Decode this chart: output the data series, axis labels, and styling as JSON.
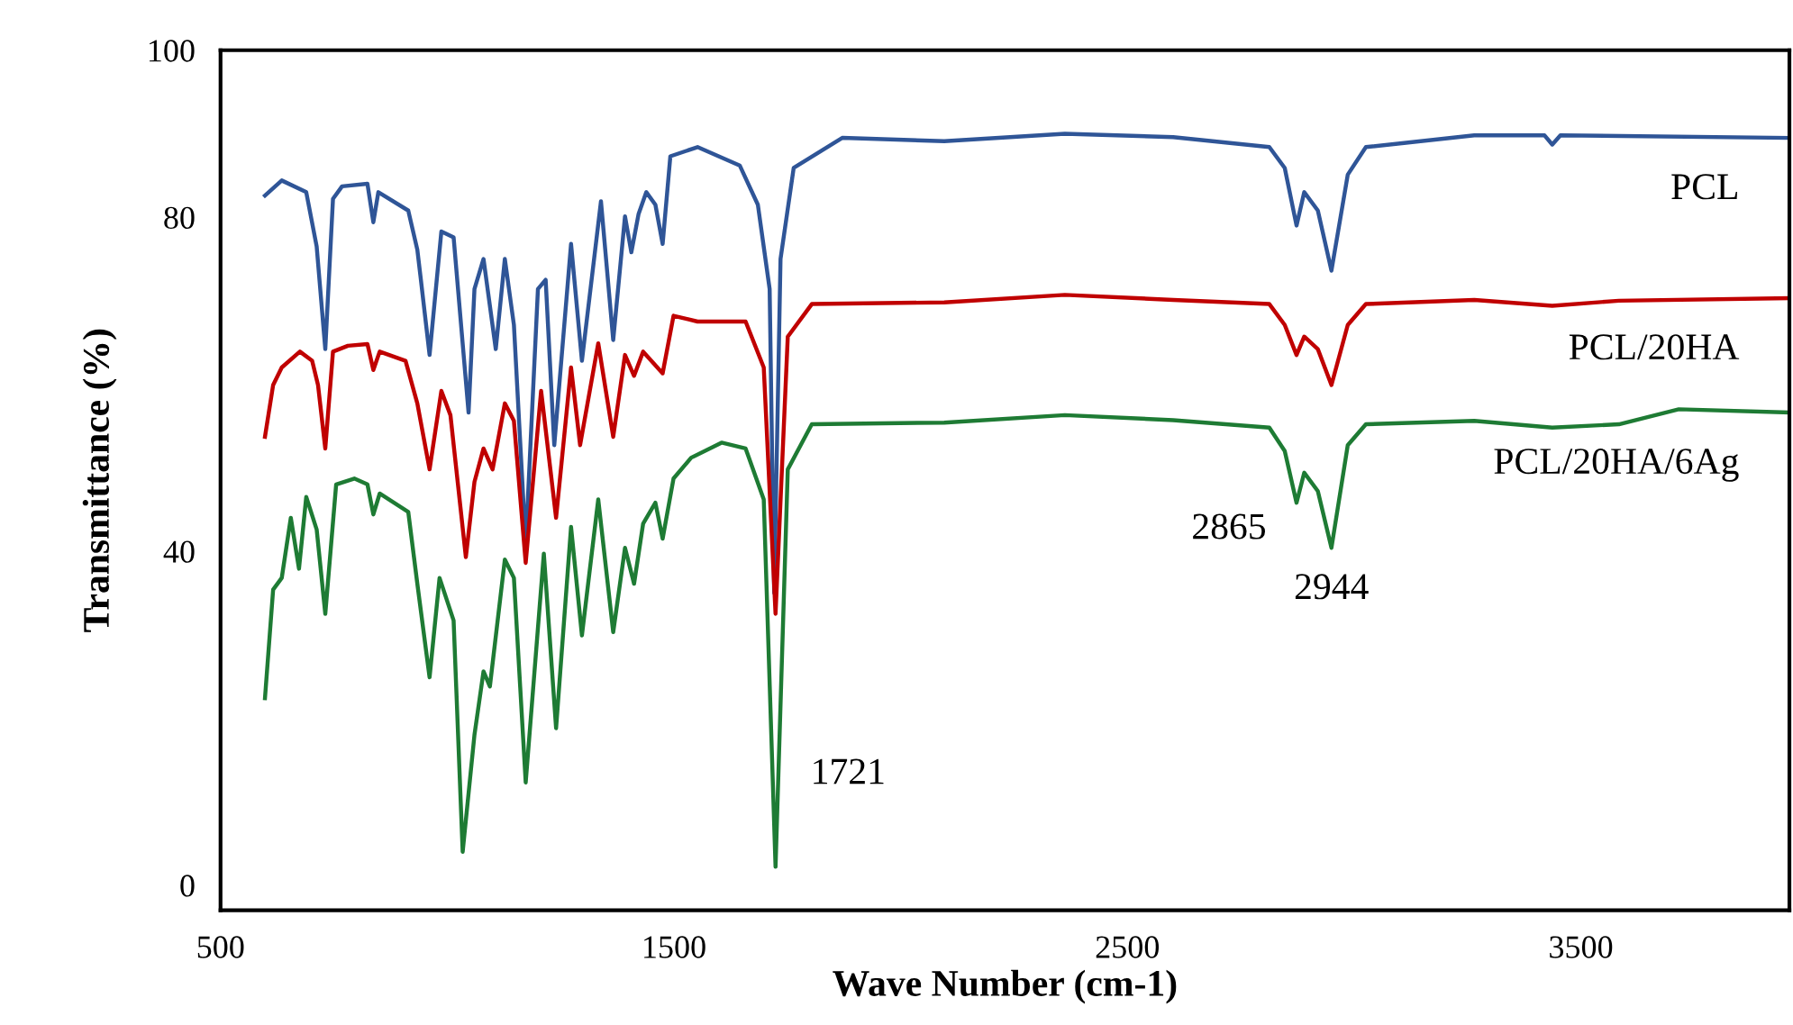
{
  "chart_data": {
    "type": "line",
    "xlabel": "Wave Number (cm-1)",
    "ylabel": "Transmittance (%)",
    "xlim": [
      500,
      3960
    ],
    "xticks": [
      500,
      1500,
      2500,
      3500
    ],
    "ylim": [
      -3,
      100
    ],
    "yticks": [
      0,
      40,
      80,
      100
    ],
    "grid": false,
    "legend": false,
    "marker": "none",
    "line_style": "solid",
    "series": [
      {
        "name": "PCL",
        "color": "#2f5597",
        "x": [
          598,
          635,
          689,
          712,
          731,
          748,
          768,
          824,
          837,
          848,
          914,
          934,
          941,
          961,
          987,
          1014,
          1047,
          1060,
          1080,
          1107,
          1127,
          1147,
          1173,
          1200,
          1217,
          1236,
          1273,
          1297,
          1339,
          1366,
          1392,
          1406,
          1422,
          1439,
          1459,
          1475,
          1492,
          1552,
          1645,
          1685,
          1711,
          1721,
          1735,
          1764,
          1871,
          2096,
          2362,
          2601,
          2813,
          2847,
          2873,
          2890,
          2920,
          2950,
          2986,
          3026,
          3265,
          3420,
          3437,
          3455,
          3960
        ],
        "values": [
          82.6,
          84.4,
          83.0,
          76.5,
          64.2,
          82.2,
          83.7,
          84.0,
          79.4,
          83.0,
          80.8,
          76.1,
          72.9,
          63.5,
          78.3,
          77.6,
          56.6,
          71.4,
          75.0,
          64.2,
          75.0,
          67.1,
          40.8,
          71.4,
          72.5,
          52.7,
          76.8,
          62.8,
          81.9,
          65.3,
          80.1,
          75.8,
          80.4,
          83.0,
          81.5,
          76.8,
          87.3,
          88.4,
          86.2,
          81.5,
          71.4,
          35,
          75,
          85.9,
          89.5,
          89.1,
          90.0,
          89.6,
          88.4,
          85.9,
          79.0,
          83.0,
          80.8,
          73.6,
          85.1,
          88.4,
          89.8,
          89.8,
          88.7,
          89.8,
          89.5
        ]
      },
      {
        "name": "PCL/20HA",
        "color": "#c00000",
        "x": [
          598,
          616,
          635,
          675,
          702,
          715,
          731,
          748,
          781,
          824,
          837,
          851,
          908,
          934,
          961,
          987,
          1007,
          1041,
          1060,
          1080,
          1100,
          1127,
          1147,
          1173,
          1207,
          1240,
          1273,
          1293,
          1333,
          1366,
          1392,
          1412,
          1432,
          1475,
          1499,
          1552,
          1658,
          1698,
          1724,
          1751,
          1804,
          2096,
          2362,
          2601,
          2813,
          2847,
          2873,
          2890,
          2920,
          2950,
          2986,
          3026,
          3265,
          3437,
          3584,
          3960
        ],
        "values": [
          53.7,
          59.9,
          62.0,
          63.9,
          62.8,
          59.9,
          52.3,
          63.9,
          64.6,
          64.8,
          61.7,
          63.9,
          62.8,
          57.7,
          49.8,
          59.2,
          56.3,
          39.3,
          48.3,
          52.3,
          49.8,
          57.7,
          55.6,
          38.6,
          59.2,
          44.0,
          62.0,
          52.7,
          64.9,
          53.7,
          63.5,
          61.0,
          63.9,
          61.3,
          68.2,
          67.5,
          67.5,
          62.0,
          32.5,
          65.7,
          69.6,
          69.8,
          70.7,
          70.1,
          69.6,
          67.1,
          63.5,
          65.7,
          64.2,
          59.9,
          67.1,
          69.6,
          70.1,
          69.4,
          70.0,
          70.3
        ]
      },
      {
        "name": "PCL/20HA/6Ag",
        "color": "#1e7b34",
        "x": [
          598,
          616,
          635,
          655,
          673,
          689,
          712,
          731,
          755,
          795,
          824,
          837,
          851,
          914,
          934,
          961,
          983,
          1014,
          1034,
          1060,
          1080,
          1094,
          1127,
          1147,
          1173,
          1213,
          1240,
          1273,
          1297,
          1333,
          1366,
          1392,
          1412,
          1432,
          1459,
          1475,
          1499,
          1538,
          1605,
          1658,
          1698,
          1724,
          1751,
          1804,
          2096,
          2362,
          2601,
          2813,
          2847,
          2873,
          2890,
          2920,
          2950,
          2986,
          3026,
          3265,
          3437,
          3584,
          3716,
          3960
        ],
        "values": [
          22.4,
          35.4,
          36.8,
          44.0,
          37.9,
          46.5,
          42.6,
          32.5,
          48.0,
          48.7,
          48.0,
          44.4,
          46.9,
          44.7,
          36.1,
          24.9,
          36.8,
          31.7,
          4.0,
          18.0,
          25.6,
          23.8,
          39.0,
          36.8,
          12.3,
          39.7,
          18.8,
          42.9,
          29.9,
          46.2,
          30.3,
          40.4,
          36.1,
          43.3,
          45.8,
          41.5,
          48.7,
          51.2,
          53.0,
          52.3,
          46.2,
          2.2,
          49.8,
          55.2,
          55.4,
          56.3,
          55.7,
          54.8,
          52.0,
          45.8,
          49.4,
          47.2,
          40.4,
          52.7,
          55.2,
          55.6,
          54.8,
          55.2,
          57.0,
          56.6
        ]
      }
    ],
    "annotations": [
      {
        "text": "1721",
        "x": 1724,
        "y": 2.2
      },
      {
        "text": "2865",
        "x": 2873,
        "y": 45.8
      },
      {
        "text": "2944",
        "x": 2950,
        "y": 40.4
      }
    ]
  }
}
